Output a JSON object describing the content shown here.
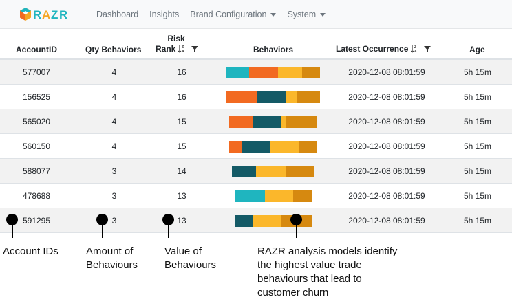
{
  "brand": {
    "name": "RAZR"
  },
  "nav": [
    {
      "label": "Dashboard",
      "dropdown": false
    },
    {
      "label": "Insights",
      "dropdown": false
    },
    {
      "label": "Brand Configuration",
      "dropdown": true
    },
    {
      "label": "System",
      "dropdown": true
    }
  ],
  "columns": {
    "account": "AccountID",
    "qty": "Qty Behaviors",
    "risk_line1": "Risk",
    "risk_line2": "Rank",
    "behaviors": "Behaviors",
    "latest": "Latest Occurrence",
    "age": "Age"
  },
  "colors": {
    "teal": "#1fb5bf",
    "orange": "#f26a21",
    "dark_teal": "#145a66",
    "yellow": "#fbb72b",
    "gold": "#d68910"
  },
  "rows": [
    {
      "account": "577007",
      "qty": "4",
      "risk": "16",
      "latest": "2020-12-08 08:01:59",
      "age": "5h 15m",
      "segments": [
        {
          "color": "teal",
          "share": 0.24
        },
        {
          "color": "orange",
          "share": 0.31
        },
        {
          "color": "yellow",
          "share": 0.26
        },
        {
          "color": "gold",
          "share": 0.19
        }
      ]
    },
    {
      "account": "156525",
      "qty": "4",
      "risk": "16",
      "latest": "2020-12-08 08:01:59",
      "age": "5h 15m",
      "segments": [
        {
          "color": "orange",
          "share": 0.32
        },
        {
          "color": "dark_teal",
          "share": 0.31
        },
        {
          "color": "yellow",
          "share": 0.12
        },
        {
          "color": "gold",
          "share": 0.25
        }
      ]
    },
    {
      "account": "565020",
      "qty": "4",
      "risk": "15",
      "latest": "2020-12-08 08:01:59",
      "age": "5h 15m",
      "segments": [
        {
          "color": "orange",
          "share": 0.27
        },
        {
          "color": "dark_teal",
          "share": 0.32
        },
        {
          "color": "yellow",
          "share": 0.06
        },
        {
          "color": "gold",
          "share": 0.35
        }
      ]
    },
    {
      "account": "560150",
      "qty": "4",
      "risk": "15",
      "latest": "2020-12-08 08:01:59",
      "age": "5h 15m",
      "segments": [
        {
          "color": "orange",
          "share": 0.14
        },
        {
          "color": "dark_teal",
          "share": 0.33
        },
        {
          "color": "yellow",
          "share": 0.33
        },
        {
          "color": "gold",
          "share": 0.2
        }
      ]
    },
    {
      "account": "588077",
      "qty": "3",
      "risk": "14",
      "latest": "2020-12-08 08:01:59",
      "age": "5h 15m",
      "segments": [
        {
          "color": "dark_teal",
          "share": 0.29
        },
        {
          "color": "yellow",
          "share": 0.36
        },
        {
          "color": "gold",
          "share": 0.35
        }
      ]
    },
    {
      "account": "478688",
      "qty": "3",
      "risk": "13",
      "latest": "2020-12-08 08:01:59",
      "age": "5h 15m",
      "segments": [
        {
          "color": "teal",
          "share": 0.39
        },
        {
          "color": "yellow",
          "share": 0.37
        },
        {
          "color": "gold",
          "share": 0.24
        }
      ]
    },
    {
      "account": "591295",
      "qty": "3",
      "risk": "13",
      "latest": "2020-12-08 08:01:59",
      "age": "5h 15m",
      "segments": [
        {
          "color": "dark_teal",
          "share": 0.23
        },
        {
          "color": "yellow",
          "share": 0.38
        },
        {
          "color": "gold",
          "share": 0.39
        }
      ]
    }
  ],
  "annotations": {
    "account_ids": "Account IDs",
    "amount_line1": "Amount of",
    "amount_line2": "Behaviours",
    "value_line1": "Value of",
    "value_line2": "Behaviours",
    "razr_line1": "RAZR analysis models identify",
    "razr_line2": "the highest value trade",
    "razr_line3": "behaviours that lead to",
    "razr_line4": "customer churn"
  }
}
